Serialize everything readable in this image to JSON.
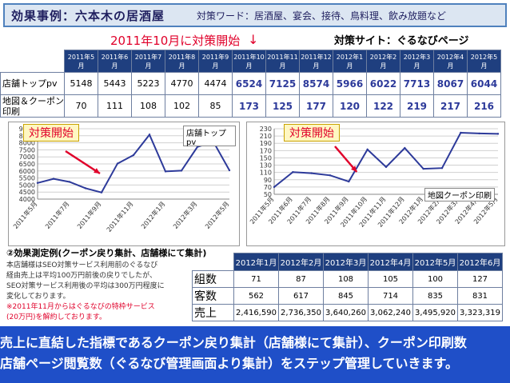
{
  "header": {
    "title": "効果事例：六本木の居酒屋",
    "keywords": "対策ワード：居酒屋、宴会、接待、鳥料理、飲み放題など",
    "start_label": "2011年10月に対策開始",
    "start_arrow": "↓",
    "site_label": "対策サイト：ぐるなびページ"
  },
  "top_table": {
    "months": [
      "2011年5月",
      "2011年6月",
      "2011年7月",
      "2011年8月",
      "2011年9月",
      "2011年10月",
      "2011年11月",
      "2011年12月",
      "2012年1月",
      "2012年2月",
      "2012年3月",
      "2012年4月",
      "2012年5月"
    ],
    "rows": [
      {
        "label": "店舗トップpv",
        "values": [
          "5148",
          "5443",
          "5223",
          "4770",
          "4474",
          "6524",
          "7125",
          "8574",
          "5966",
          "6022",
          "7713",
          "8067",
          "6044"
        ]
      },
      {
        "label": "地図＆クーポン印刷",
        "values": [
          "70",
          "111",
          "108",
          "102",
          "85",
          "173",
          "125",
          "177",
          "120",
          "122",
          "219",
          "217",
          "216"
        ]
      }
    ]
  },
  "chart_data": [
    {
      "type": "line",
      "title": "対策開始",
      "series_label": "店舗トップpv",
      "categories": [
        "2011年5月",
        "2011年7月",
        "2011年9月",
        "2011年11月",
        "2012年1月",
        "2012年3月",
        "2012年5月"
      ],
      "x": [
        "2011年5月",
        "2011年6月",
        "2011年7月",
        "2011年8月",
        "2011年9月",
        "2011年10月",
        "2011年11月",
        "2011年12月",
        "2012年1月",
        "2012年2月",
        "2012年3月",
        "2012年4月",
        "2012年5月"
      ],
      "values": [
        5148,
        5443,
        5223,
        4770,
        4474,
        6524,
        7125,
        8574,
        5966,
        6022,
        7713,
        8067,
        6044
      ],
      "ylim": [
        4000,
        9000
      ],
      "yticks": [
        4000,
        4500,
        5000,
        5500,
        6000,
        6500,
        7000,
        7500,
        8000,
        8500,
        9000
      ],
      "color": "#2d3a9a"
    },
    {
      "type": "line",
      "title": "対策開始",
      "series_label": "地図クーポン印刷",
      "categories": [
        "2011年5月",
        "2011年6月",
        "2011年7月",
        "2011年8月",
        "2011年9月",
        "2011年10月",
        "2011年11月",
        "2011年12月",
        "2012年1月",
        "2012年2月",
        "2012年3月",
        "2012年4月",
        "2012年5月"
      ],
      "x": [
        "2011年5月",
        "2011年6月",
        "2011年7月",
        "2011年8月",
        "2011年9月",
        "2011年10月",
        "2011年11月",
        "2011年12月",
        "2012年1月",
        "2012年2月",
        "2012年3月",
        "2012年4月",
        "2012年5月"
      ],
      "values": [
        70,
        111,
        108,
        102,
        85,
        173,
        125,
        177,
        120,
        122,
        219,
        217,
        216
      ],
      "ylim": [
        50,
        230
      ],
      "yticks": [
        50,
        70,
        90,
        110,
        130,
        150,
        170,
        190,
        210,
        230
      ],
      "color": "#2d3a9a"
    }
  ],
  "section2": {
    "title": "②効果測定例(クーポン戻り集計、店舗様にて集計)",
    "note_lines": [
      "本店舗様はSEO対策サービス利用前のぐるなび",
      "経由売上は平均100万円前後の戻りでしたが、",
      "SEO対策サービス利用後の平均は300万円程度に",
      "変化しております。"
    ],
    "note_red_lines": [
      "※2011年11月からはぐるなびの特枠サービス",
      "(20万円)を解約しております。"
    ]
  },
  "bottom_table": {
    "months": [
      "2012年1月",
      "2012年2月",
      "2012年3月",
      "2012年4月",
      "2012年5月",
      "2012年6月"
    ],
    "rows": [
      {
        "label": "組数",
        "values": [
          "71",
          "87",
          "108",
          "105",
          "100",
          "127"
        ]
      },
      {
        "label": "客数",
        "values": [
          "562",
          "617",
          "845",
          "714",
          "835",
          "831"
        ]
      },
      {
        "label": "売上",
        "values": [
          "2,416,590",
          "2,736,350",
          "3,640,260",
          "3,062,240",
          "3,495,920",
          "3,323,319"
        ]
      }
    ]
  },
  "banner": {
    "line1": "売上に直結した指標であるクーポン戻り集計（店舗様にて集計）、クーポン印刷数",
    "line2": "店舗ページ閲覧数（ぐるなび管理画面より集計）をステップ管理していきます。"
  },
  "colors": {
    "accent": "#e0002a",
    "header_blue": "#1f3f7f",
    "banner_blue": "#1f4fc8",
    "line": "#2d3a9a"
  }
}
